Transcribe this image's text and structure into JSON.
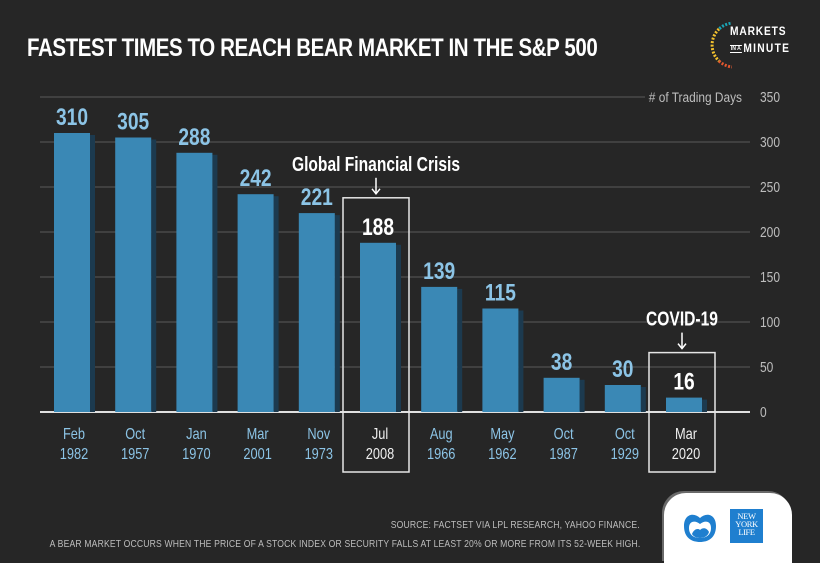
{
  "title": "FASTEST TIMES TO REACH BEAR MARKET IN THE S&P 500",
  "logo": {
    "line1": "MARKETS",
    "in_a": "IN A",
    "line2": "MINUTE",
    "ring_colors": [
      "#1aa6b7",
      "#f2c12e",
      "#e4572e"
    ]
  },
  "colors": {
    "background": "#262626",
    "bar": "#3a88b5",
    "bar_shadow": "#1c3a4f",
    "value_label": "#8cc4e6",
    "highlight_label": "#ffffff",
    "gridline": "#5a5a5a",
    "axis_text": "#bdbdbd"
  },
  "chart_data": {
    "type": "bar",
    "title": "FASTEST TIMES TO REACH BEAR MARKET IN THE S&P 500",
    "ylabel": "# of Trading Days",
    "xlabel": "",
    "ylim": [
      0,
      350
    ],
    "yticks": [
      0,
      50,
      100,
      150,
      200,
      250,
      300,
      350
    ],
    "grid": true,
    "categories": [
      [
        "Feb",
        "1982"
      ],
      [
        "Oct",
        "1957"
      ],
      [
        "Jan",
        "1970"
      ],
      [
        "Mar",
        "2001"
      ],
      [
        "Nov",
        "1973"
      ],
      [
        "Jul",
        "2008"
      ],
      [
        "Aug",
        "1966"
      ],
      [
        "May",
        "1962"
      ],
      [
        "Oct",
        "1987"
      ],
      [
        "Oct",
        "1929"
      ],
      [
        "Mar",
        "2020"
      ]
    ],
    "values": [
      310,
      305,
      288,
      242,
      221,
      188,
      139,
      115,
      38,
      30,
      16
    ],
    "highlights": [
      {
        "index": 5,
        "annotation": "Global Financial Crisis"
      },
      {
        "index": 10,
        "annotation": "COVID-19"
      }
    ]
  },
  "footer": {
    "source": "SOURCE: FACTSET VIA LPL RESEARCH, YAHOO FINANCE.",
    "definition": "A BEAR MARKET OCCURS WHEN THE PRICE OF A STOCK INDEX OR SECURITY FALLS AT LEAST 20% OR MORE FROM ITS 52-WEEK HIGH.",
    "brand": {
      "nyl_lines": [
        "NEW",
        "YORK",
        "LIFE"
      ]
    }
  }
}
